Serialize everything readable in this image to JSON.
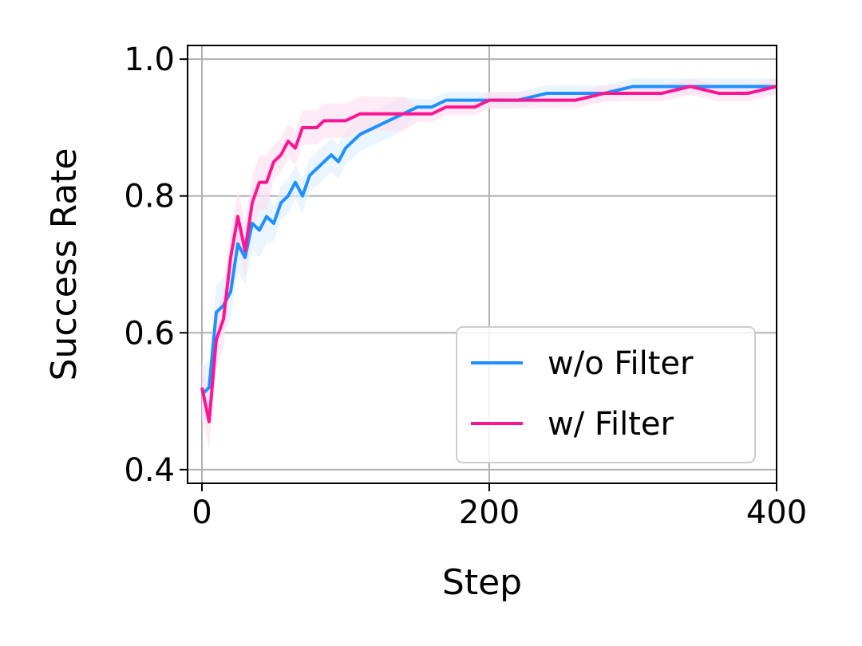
{
  "chart_data": {
    "type": "line",
    "title": "",
    "xlabel": "Step",
    "ylabel": "Success Rate",
    "xlim": [
      -10,
      400
    ],
    "ylim": [
      0.38,
      1.02
    ],
    "xticks": [
      0,
      200,
      400
    ],
    "xtick_labels": [
      "0",
      "200",
      "400"
    ],
    "yticks": [
      0.4,
      0.6,
      0.8,
      1.0
    ],
    "ytick_labels": [
      "0.4",
      "0.6",
      "0.8",
      "1.0"
    ],
    "grid": true,
    "legend_position": "lower-right",
    "series": [
      {
        "name": "w/o Filter",
        "color": "#1E90FF",
        "band_color": "#DDEEFF",
        "x": [
          0,
          5,
          10,
          15,
          20,
          25,
          30,
          35,
          40,
          45,
          50,
          55,
          60,
          65,
          70,
          75,
          80,
          85,
          90,
          95,
          100,
          110,
          120,
          130,
          140,
          150,
          160,
          170,
          180,
          190,
          200,
          220,
          240,
          260,
          280,
          300,
          320,
          340,
          360,
          380,
          400
        ],
        "y": [
          0.51,
          0.52,
          0.63,
          0.64,
          0.66,
          0.73,
          0.71,
          0.76,
          0.75,
          0.77,
          0.76,
          0.79,
          0.8,
          0.82,
          0.8,
          0.83,
          0.84,
          0.85,
          0.86,
          0.85,
          0.87,
          0.89,
          0.9,
          0.91,
          0.92,
          0.93,
          0.93,
          0.94,
          0.94,
          0.94,
          0.94,
          0.94,
          0.95,
          0.95,
          0.95,
          0.96,
          0.96,
          0.96,
          0.96,
          0.96,
          0.96
        ]
      },
      {
        "name": "w/ Filter",
        "color": "#FF1493",
        "band_color": "#FFDDEE",
        "x": [
          0,
          5,
          10,
          15,
          20,
          25,
          30,
          35,
          40,
          45,
          50,
          55,
          60,
          65,
          70,
          75,
          80,
          85,
          90,
          95,
          100,
          110,
          120,
          130,
          140,
          150,
          160,
          170,
          180,
          190,
          200,
          220,
          240,
          260,
          280,
          300,
          320,
          340,
          360,
          380,
          400
        ],
        "y": [
          0.52,
          0.47,
          0.59,
          0.62,
          0.71,
          0.77,
          0.72,
          0.79,
          0.82,
          0.82,
          0.85,
          0.86,
          0.88,
          0.87,
          0.9,
          0.9,
          0.9,
          0.91,
          0.91,
          0.91,
          0.91,
          0.92,
          0.92,
          0.92,
          0.92,
          0.92,
          0.92,
          0.93,
          0.93,
          0.93,
          0.94,
          0.94,
          0.94,
          0.94,
          0.95,
          0.95,
          0.95,
          0.96,
          0.95,
          0.95,
          0.96
        ]
      }
    ]
  }
}
